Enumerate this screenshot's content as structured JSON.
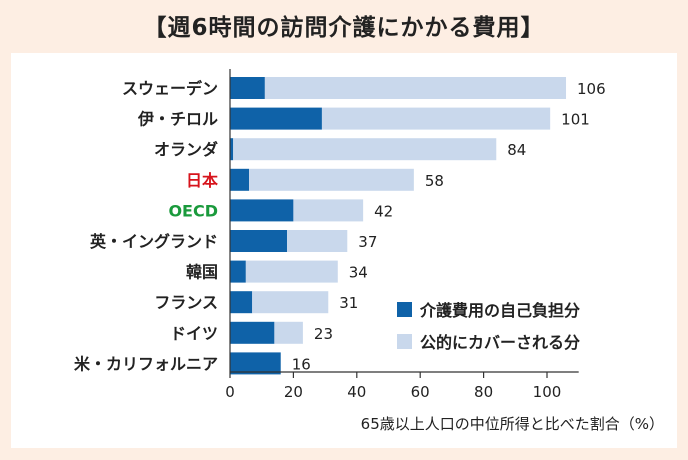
{
  "title": "【週6時間の訪問介護にかかる費用】",
  "chart_data": {
    "type": "bar",
    "orientation": "horizontal",
    "stacked": true,
    "categories": [
      "スウェーデン",
      "伊・チロル",
      "オランダ",
      "日本",
      "OECD",
      "英・イングランド",
      "韓国",
      "フランス",
      "ドイツ",
      "米・カリフォルニア"
    ],
    "category_colors": [
      "#222222",
      "#222222",
      "#222222",
      "#d7141c",
      "#1a9a3c",
      "#222222",
      "#222222",
      "#222222",
      "#222222",
      "#222222"
    ],
    "totals": [
      106,
      101,
      84,
      58,
      42,
      37,
      34,
      31,
      23,
      16
    ],
    "total_labels": [
      "106",
      "101",
      "84",
      "58",
      "42",
      "37",
      "34",
      "31",
      "23",
      "16"
    ],
    "series": [
      {
        "name": "介護費用の自己負担分",
        "color": "#0f62a8",
        "values": [
          11,
          29,
          1,
          6,
          20,
          18,
          5,
          7,
          14,
          16
        ]
      },
      {
        "name": "公的にカバーされる分",
        "color": "#c9d8ec",
        "values": [
          95,
          72,
          83,
          52,
          22,
          19,
          29,
          24,
          9,
          0
        ]
      }
    ],
    "xlim": [
      0,
      110
    ],
    "xticks": [
      0,
      20,
      40,
      60,
      80,
      100
    ],
    "xtick_labels": [
      "0",
      "20",
      "40",
      "60",
      "80",
      "100"
    ],
    "xlabel": "65歳以上人口の中位所得と比べた割合（%）",
    "legend_position": "lower-right",
    "grid": false
  }
}
